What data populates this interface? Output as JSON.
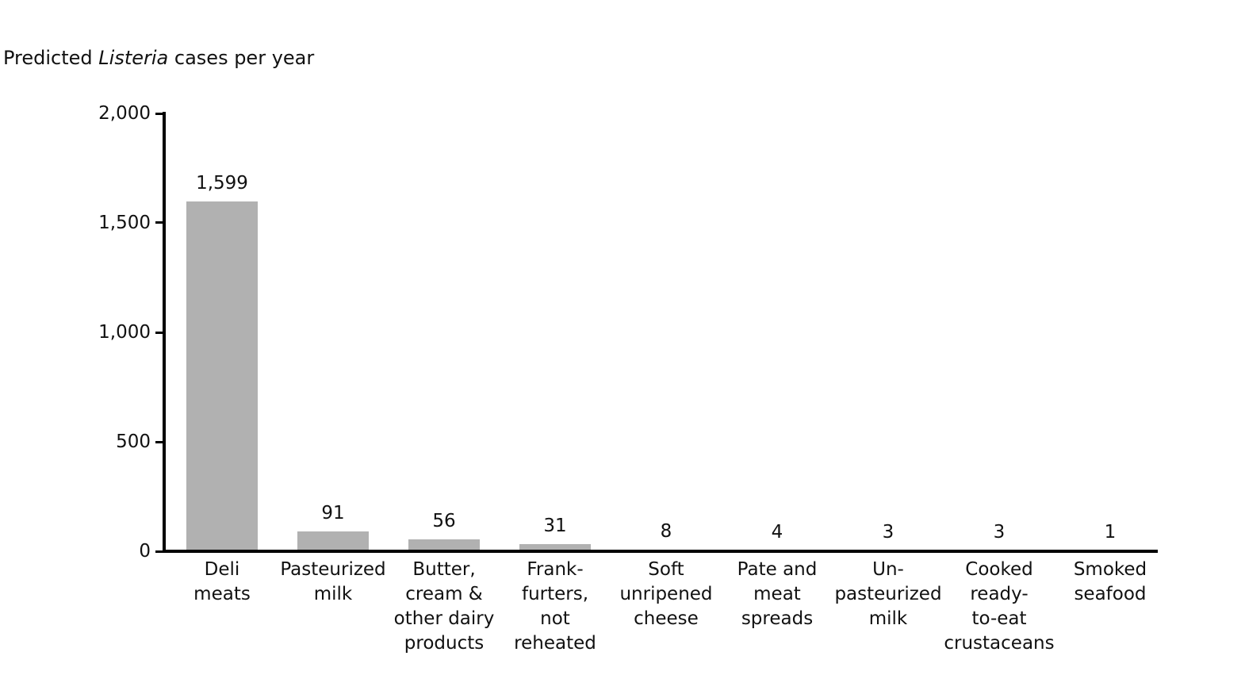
{
  "chart_data": {
    "type": "bar",
    "title": {
      "prefix": "Predicted ",
      "italic": "Listeria",
      "suffix": " cases per year",
      "full": "Predicted Listeria cases per year"
    },
    "categories": [
      [
        "Deli",
        "meats"
      ],
      [
        "Pasteurized",
        "milk"
      ],
      [
        "Butter,",
        "cream &",
        "other dairy",
        "products"
      ],
      [
        "Frank-",
        "furters,",
        "not",
        "reheated"
      ],
      [
        "Soft",
        "unripened",
        "cheese"
      ],
      [
        "Pate and",
        "meat",
        "spreads"
      ],
      [
        "Un-",
        "pasteurized",
        "milk"
      ],
      [
        "Cooked",
        "ready-",
        "to-eat",
        "crustaceans"
      ],
      [
        "Smoked",
        "seafood"
      ]
    ],
    "values": [
      1599,
      91,
      56,
      31,
      8,
      4,
      3,
      3,
      1
    ],
    "value_labels": [
      "1,599",
      "91",
      "56",
      "31",
      "8",
      "4",
      "3",
      "3",
      "1"
    ],
    "xlabel": "",
    "ylabel": "",
    "ylim": [
      0,
      2000
    ],
    "yticks": [
      {
        "value": 0,
        "label": "0"
      },
      {
        "value": 500,
        "label": "500"
      },
      {
        "value": 1000,
        "label": "1,000"
      },
      {
        "value": 1500,
        "label": "1,500"
      },
      {
        "value": 2000,
        "label": "2,000"
      }
    ],
    "grid": false,
    "legend": "none",
    "bar_color": "#b1b1b1",
    "axis_color": "#000000",
    "text_color": "#111111",
    "background_color": "#ffffff"
  }
}
